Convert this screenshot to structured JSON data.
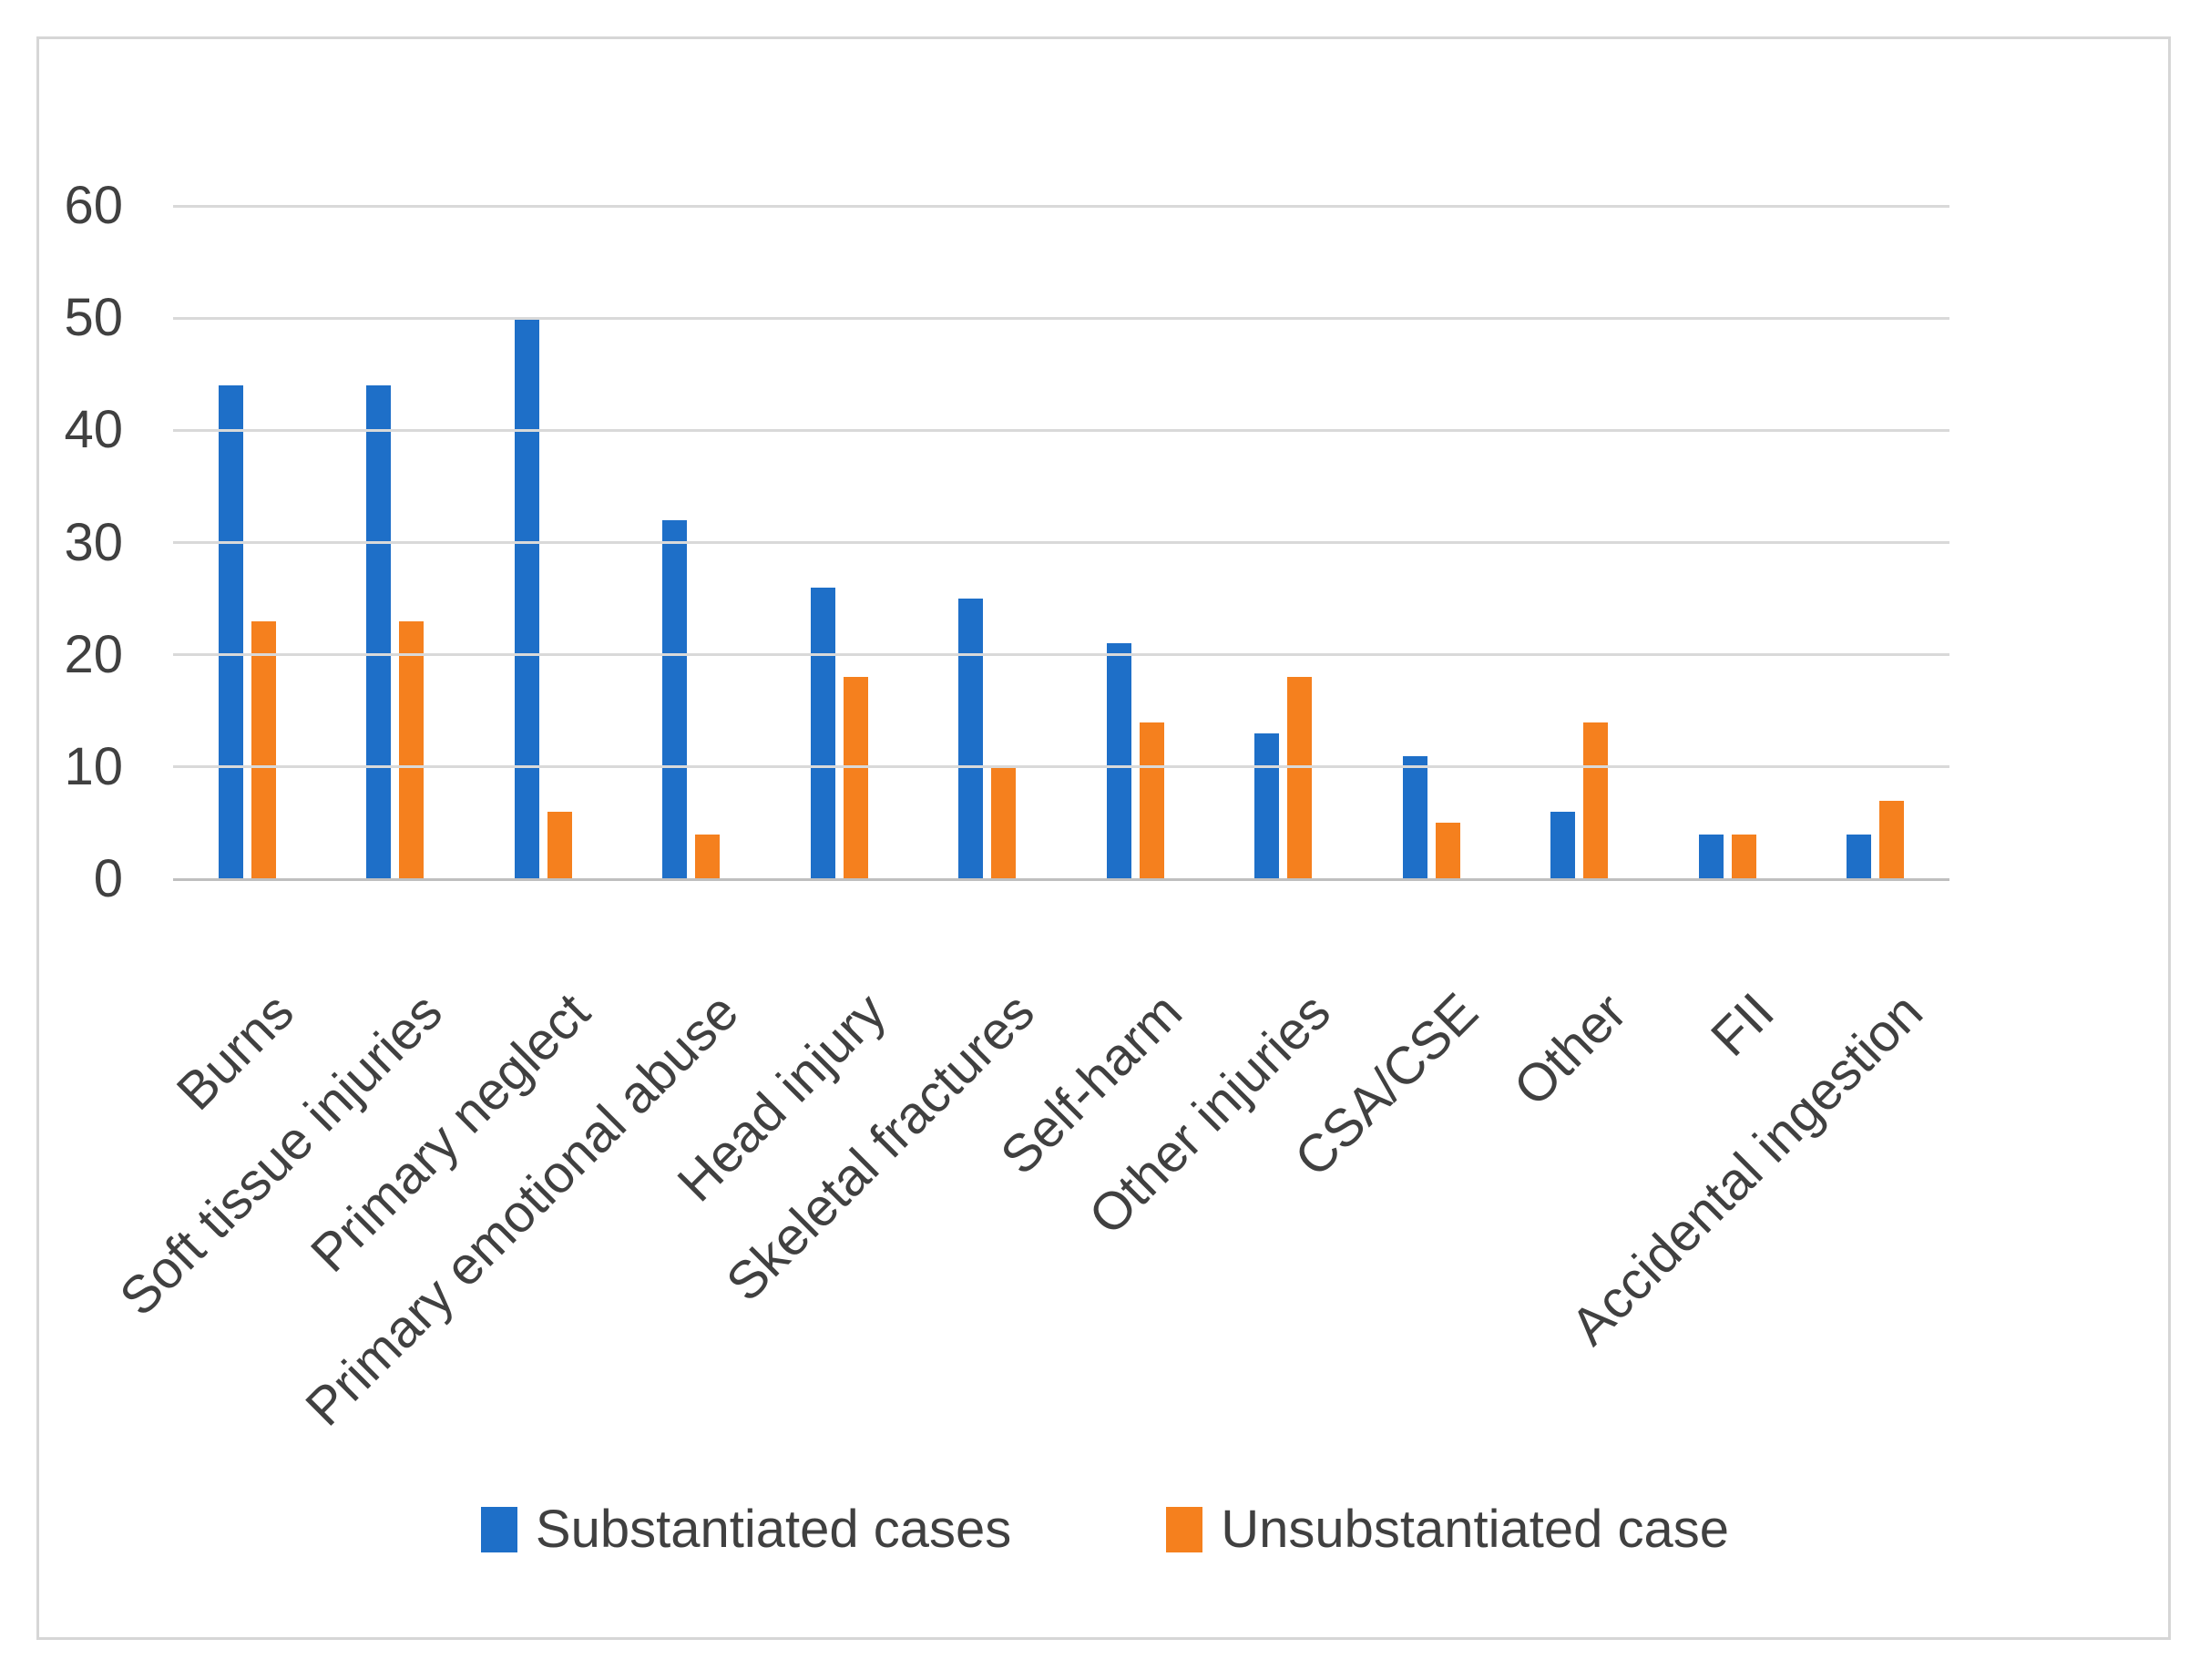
{
  "chart_data": {
    "type": "bar",
    "title": "",
    "categories": [
      "Burns",
      "Soft tissue injuries",
      "Primary neglect",
      "Primary emotional abuse",
      "Head injury",
      "Skeletal fractures",
      "Self-harm",
      "Other injuries",
      "CSA/CSE",
      "Other",
      "FII",
      "Accidental ingestion"
    ],
    "series": [
      {
        "name": "Substantiated cases",
        "color": "#1e6fc8",
        "values": [
          44,
          44,
          50,
          32,
          26,
          25,
          21,
          13,
          11,
          6,
          4,
          4
        ]
      },
      {
        "name": "Unsubstantiated case",
        "color": "#f5801e",
        "values": [
          23,
          23,
          6,
          4,
          18,
          10,
          14,
          18,
          5,
          14,
          4,
          7
        ]
      }
    ],
    "xlabel": "",
    "ylabel": "",
    "ylim": [
      0,
      60
    ],
    "yticks": [
      0,
      10,
      20,
      30,
      40,
      50,
      60
    ],
    "grid": "horizontal",
    "gridline_color": "#d9d9d9",
    "axis_line_color": "#bfbfbf",
    "tick_label_color": "#404040",
    "frame_border_color": "#d6d6d6",
    "x_label_rotation_deg": 45,
    "legend_position": "bottom-center"
  }
}
